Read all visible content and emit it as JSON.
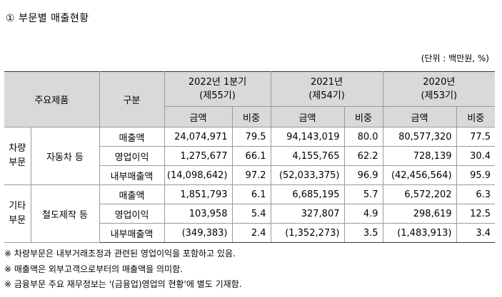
{
  "title": "① 부문별 매출현황",
  "unit": "(단위 : 백만원, %)",
  "table": {
    "header": {
      "product": "주요제품",
      "category": "구분",
      "periods": [
        {
          "line1": "2022년 1분기",
          "line2": "(제55기)"
        },
        {
          "line1": "2021년",
          "line2": "(제54기)"
        },
        {
          "line1": "2020년",
          "line2": "(제53기)"
        }
      ],
      "amount": "금액",
      "ratio": "비중"
    },
    "groups": [
      {
        "segment_line1": "차량",
        "segment_line2": "부문",
        "product": "자동차 등",
        "rows": [
          {
            "item": "매출액",
            "values": [
              "24,074,971",
              "79.5",
              "94,143,019",
              "80.0",
              "80,577,320",
              "77.5"
            ]
          },
          {
            "item": "영업이익",
            "values": [
              "1,275,677",
              "66.1",
              "4,155,765",
              "62.2",
              "728,139",
              "30.4"
            ]
          },
          {
            "item": "내부매출액",
            "values": [
              "(14,098,642)",
              "97.2",
              "(52,033,375)",
              "96.9",
              "(42,456,564)",
              "95.9"
            ]
          }
        ]
      },
      {
        "segment_line1": "기타",
        "segment_line2": "부문",
        "product": "철도제작 등",
        "rows": [
          {
            "item": "매출액",
            "values": [
              "1,851,793",
              "6.1",
              "6,685,195",
              "5.7",
              "6,572,202",
              "6.3"
            ]
          },
          {
            "item": "영업이익",
            "values": [
              "103,958",
              "5.4",
              "327,807",
              "4.9",
              "298,619",
              "12.5"
            ]
          },
          {
            "item": "내부매출액",
            "values": [
              "(349,383)",
              "2.4",
              "(1,352,273)",
              "3.5",
              "(1,483,913)",
              "3.4"
            ]
          }
        ]
      }
    ]
  },
  "notes": [
    "※ 차량부문은 내부거래조정과 관련된 영업이익을 포함하고 있음.",
    "※ 매출액은 외부고객으로부터의 매출액을 의미함.",
    "※ 금융부문 주요 재무정보는 '(금융업)영업의 현황'에 별도 기재함."
  ]
}
